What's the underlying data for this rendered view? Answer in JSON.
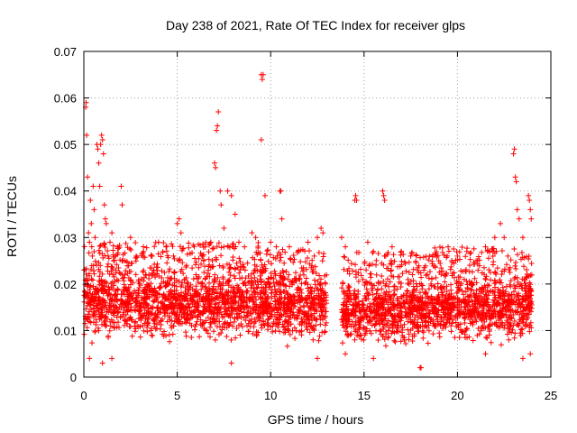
{
  "chart_data": {
    "type": "scatter",
    "title": "Day 238 of 2021, Rate Of TEC Index for receiver glps",
    "xlabel": "GPS time / hours",
    "ylabel": "ROTI / TECUs",
    "xlim": [
      0,
      25
    ],
    "ylim": [
      0,
      0.07
    ],
    "grid": true,
    "marker": "+",
    "color": "#ff0000",
    "xticks": [
      {
        "value": 0,
        "label": "0"
      },
      {
        "value": 5,
        "label": "5"
      },
      {
        "value": 10,
        "label": "10"
      },
      {
        "value": 15,
        "label": "15"
      },
      {
        "value": 20,
        "label": "20"
      },
      {
        "value": 25,
        "label": "25"
      }
    ],
    "yticks": [
      {
        "value": 0,
        "label": "0"
      },
      {
        "value": 0.01,
        "label": "0.01"
      },
      {
        "value": 0.02,
        "label": "0.02"
      },
      {
        "value": 0.03,
        "label": "0.03"
      },
      {
        "value": 0.04,
        "label": "0.04"
      },
      {
        "value": 0.05,
        "label": "0.05"
      },
      {
        "value": 0.06,
        "label": "0.06"
      },
      {
        "value": 0.07,
        "label": "0.07"
      }
    ],
    "points": [
      [
        0.1,
        0.058
      ],
      [
        0.12,
        0.059
      ],
      [
        0.15,
        0.052
      ],
      [
        0.2,
        0.043
      ],
      [
        0.25,
        0.031
      ],
      [
        0.3,
        0.029
      ],
      [
        0.35,
        0.038
      ],
      [
        0.4,
        0.033
      ],
      [
        0.5,
        0.041
      ],
      [
        0.55,
        0.036
      ],
      [
        0.6,
        0.03
      ],
      [
        0.7,
        0.05
      ],
      [
        0.75,
        0.049
      ],
      [
        0.8,
        0.046
      ],
      [
        0.85,
        0.041
      ],
      [
        0.9,
        0.05
      ],
      [
        0.95,
        0.052
      ],
      [
        1.0,
        0.051
      ],
      [
        1.05,
        0.048
      ],
      [
        1.1,
        0.037
      ],
      [
        1.15,
        0.034
      ],
      [
        1.2,
        0.033
      ],
      [
        1.3,
        0.026
      ],
      [
        1.4,
        0.029
      ],
      [
        1.5,
        0.031
      ],
      [
        1.6,
        0.025
      ],
      [
        1.7,
        0.026
      ],
      [
        1.8,
        0.028
      ],
      [
        2.0,
        0.041
      ],
      [
        2.05,
        0.037
      ],
      [
        2.2,
        0.025
      ],
      [
        2.5,
        0.03
      ],
      [
        2.8,
        0.026
      ],
      [
        3.2,
        0.027
      ],
      [
        3.6,
        0.026
      ],
      [
        4.0,
        0.029
      ],
      [
        4.4,
        0.028
      ],
      [
        4.8,
        0.026
      ],
      [
        5.0,
        0.033
      ],
      [
        5.1,
        0.034
      ],
      [
        5.2,
        0.031
      ],
      [
        5.5,
        0.024
      ],
      [
        6.0,
        0.022
      ],
      [
        6.5,
        0.028
      ],
      [
        6.8,
        0.029
      ],
      [
        7.0,
        0.046
      ],
      [
        7.05,
        0.045
      ],
      [
        7.1,
        0.053
      ],
      [
        7.15,
        0.054
      ],
      [
        7.2,
        0.057
      ],
      [
        7.3,
        0.04
      ],
      [
        7.35,
        0.037
      ],
      [
        7.5,
        0.032
      ],
      [
        7.7,
        0.04
      ],
      [
        7.9,
        0.039
      ],
      [
        8.1,
        0.035
      ],
      [
        8.3,
        0.029
      ],
      [
        8.6,
        0.028
      ],
      [
        9.0,
        0.031
      ],
      [
        9.2,
        0.03
      ],
      [
        9.5,
        0.065
      ],
      [
        9.55,
        0.064
      ],
      [
        9.6,
        0.065
      ],
      [
        9.5,
        0.051
      ],
      [
        9.7,
        0.039
      ],
      [
        10.0,
        0.029
      ],
      [
        10.3,
        0.028
      ],
      [
        10.5,
        0.04
      ],
      [
        10.55,
        0.04
      ],
      [
        10.6,
        0.034
      ],
      [
        11.0,
        0.028
      ],
      [
        11.5,
        0.027
      ],
      [
        12.0,
        0.029
      ],
      [
        12.5,
        0.03
      ],
      [
        12.7,
        0.032
      ],
      [
        12.8,
        0.031
      ],
      [
        13.8,
        0.03
      ],
      [
        14.0,
        0.028
      ],
      [
        14.5,
        0.038
      ],
      [
        14.55,
        0.039
      ],
      [
        14.6,
        0.038
      ],
      [
        15.2,
        0.029
      ],
      [
        15.5,
        0.027
      ],
      [
        16.0,
        0.04
      ],
      [
        16.05,
        0.039
      ],
      [
        16.1,
        0.038
      ],
      [
        16.5,
        0.028
      ],
      [
        17.0,
        0.027
      ],
      [
        17.5,
        0.026
      ],
      [
        18.0,
        0.002
      ],
      [
        18.5,
        0.026
      ],
      [
        19.0,
        0.025
      ],
      [
        19.5,
        0.028
      ],
      [
        20.0,
        0.026
      ],
      [
        20.5,
        0.027
      ],
      [
        21.0,
        0.025
      ],
      [
        21.5,
        0.028
      ],
      [
        22.0,
        0.03
      ],
      [
        22.3,
        0.033
      ],
      [
        22.5,
        0.03
      ],
      [
        22.7,
        0.026
      ],
      [
        23.0,
        0.048
      ],
      [
        23.05,
        0.049
      ],
      [
        23.1,
        0.043
      ],
      [
        23.15,
        0.042
      ],
      [
        23.2,
        0.036
      ],
      [
        23.3,
        0.034
      ],
      [
        23.5,
        0.03
      ],
      [
        23.8,
        0.039
      ],
      [
        23.85,
        0.038
      ],
      [
        23.9,
        0.036
      ],
      [
        23.95,
        0.034
      ],
      [
        0.3,
        0.004
      ],
      [
        1.0,
        0.003
      ],
      [
        1.5,
        0.004
      ],
      [
        7.9,
        0.003
      ],
      [
        12.5,
        0.004
      ],
      [
        14.0,
        0.005
      ],
      [
        15.5,
        0.004
      ],
      [
        18.05,
        0.002
      ],
      [
        21.5,
        0.005
      ],
      [
        23.5,
        0.004
      ],
      [
        23.9,
        0.005
      ]
    ],
    "density_bands": [
      {
        "x": [
          0,
          5.0
        ],
        "ylow": 0.006,
        "yhigh": 0.022
      },
      {
        "x": [
          5.0,
          9.8
        ],
        "ylow": 0.006,
        "yhigh": 0.022
      },
      {
        "x": [
          9.8,
          13.0
        ],
        "ylow": 0.006,
        "yhigh": 0.021
      },
      {
        "x": [
          13.8,
          18.5
        ],
        "ylow": 0.005,
        "yhigh": 0.02
      },
      {
        "x": [
          18.5,
          24.0
        ],
        "ylow": 0.006,
        "yhigh": 0.021
      }
    ],
    "gaps": [
      [
        13.0,
        13.8
      ]
    ]
  }
}
